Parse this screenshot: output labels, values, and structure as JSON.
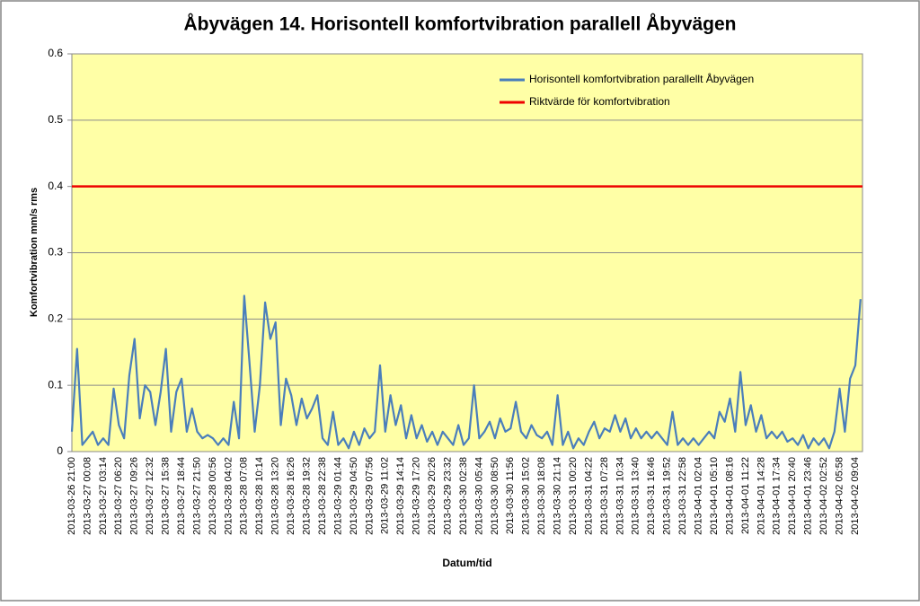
{
  "chart_data": {
    "type": "line",
    "title": "Åbyvägen 14.  Horisontell komfortvibration parallell Åbyvägen",
    "y_label": "Komfortvibration  mm/s rms",
    "x_label": "Datum/tid",
    "categories": [
      "2013-03-26 21:00",
      null,
      null,
      "2013-03-27 00:08",
      null,
      null,
      "2013-03-27 03:14",
      null,
      null,
      "2013-03-27 06:20",
      null,
      null,
      "2013-03-27 09:26",
      null,
      null,
      "2013-03-27 12:32",
      null,
      null,
      "2013-03-27 15:38",
      null,
      null,
      "2013-03-27 18:44",
      null,
      null,
      "2013-03-27 21:50",
      null,
      null,
      "2013-03-28 00:56",
      null,
      null,
      "2013-03-28 04:02",
      null,
      null,
      "2013-03-28 07:08",
      null,
      null,
      "2013-03-28 10:14",
      null,
      null,
      "2013-03-28 13:20",
      null,
      null,
      "2013-03-28 16:26",
      null,
      null,
      "2013-03-28 19:32",
      null,
      null,
      "2013-03-28 22:38",
      null,
      null,
      "2013-03-29 01:44",
      null,
      null,
      "2013-03-29 04:50",
      null,
      null,
      "2013-03-29 07:56",
      null,
      null,
      "2013-03-29 11:02",
      null,
      null,
      "2013-03-29 14:14",
      null,
      null,
      "2013-03-29 17:20",
      null,
      null,
      "2013-03-29 20:26",
      null,
      null,
      "2013-03-29 23:32",
      null,
      null,
      "2013-03-30 02:38",
      null,
      null,
      "2013-03-30 05:44",
      null,
      null,
      "2013-03-30 08:50",
      null,
      null,
      "2013-03-30 11:56",
      null,
      null,
      "2013-03-30 15:02",
      null,
      null,
      "2013-03-30 18:08",
      null,
      null,
      "2013-03-30 21:14",
      null,
      null,
      "2013-03-31 00:20",
      null,
      null,
      "2013-03-31 04:22",
      null,
      null,
      "2013-03-31 07:28",
      null,
      null,
      "2013-03-31 10:34",
      null,
      null,
      "2013-03-31 13:40",
      null,
      null,
      "2013-03-31 16:46",
      null,
      null,
      "2013-03-31 19:52",
      null,
      null,
      "2013-03-31 22:58",
      null,
      null,
      "2013-04-01 02:04",
      null,
      null,
      "2013-04-01 05:10",
      null,
      null,
      "2013-04-01 08:16",
      null,
      null,
      "2013-04-01 11:22",
      null,
      null,
      "2013-04-01 14:28",
      null,
      null,
      "2013-04-01 17:34",
      null,
      null,
      "2013-04-01 20:40",
      null,
      null,
      "2013-04-01 23:46",
      null,
      null,
      "2013-04-02 02:52",
      null,
      null,
      "2013-04-02 05:58",
      null,
      null,
      "2013-04-02 09:04",
      null
    ],
    "series": [
      {
        "name": "Horisontell komfortvibration parallellt Åbyvägen",
        "color": "#4a7ebb",
        "values": [
          0.03,
          0.155,
          0.01,
          0.02,
          0.03,
          0.01,
          0.02,
          0.01,
          0.095,
          0.04,
          0.02,
          0.115,
          0.17,
          0.05,
          0.1,
          0.09,
          0.04,
          0.09,
          0.155,
          0.03,
          0.09,
          0.11,
          0.03,
          0.065,
          0.03,
          0.02,
          0.025,
          0.02,
          0.01,
          0.02,
          0.01,
          0.075,
          0.02,
          0.235,
          0.135,
          0.03,
          0.1,
          0.225,
          0.17,
          0.195,
          0.04,
          0.11,
          0.085,
          0.04,
          0.08,
          0.05,
          0.065,
          0.085,
          0.02,
          0.01,
          0.06,
          0.01,
          0.02,
          0.005,
          0.03,
          0.01,
          0.035,
          0.02,
          0.03,
          0.13,
          0.03,
          0.085,
          0.04,
          0.07,
          0.02,
          0.055,
          0.02,
          0.04,
          0.015,
          0.03,
          0.01,
          0.03,
          0.02,
          0.01,
          0.04,
          0.01,
          0.02,
          0.1,
          0.02,
          0.03,
          0.045,
          0.02,
          0.05,
          0.03,
          0.035,
          0.075,
          0.03,
          0.02,
          0.04,
          0.025,
          0.02,
          0.03,
          0.01,
          0.085,
          0.01,
          0.03,
          0.005,
          0.02,
          0.01,
          0.03,
          0.045,
          0.02,
          0.035,
          0.03,
          0.055,
          0.03,
          0.05,
          0.02,
          0.035,
          0.02,
          0.03,
          0.02,
          0.03,
          0.02,
          0.01,
          0.06,
          0.01,
          0.02,
          0.01,
          0.02,
          0.01,
          0.02,
          0.03,
          0.02,
          0.06,
          0.045,
          0.08,
          0.03,
          0.12,
          0.04,
          0.07,
          0.03,
          0.055,
          0.02,
          0.03,
          0.02,
          0.03,
          0.015,
          0.02,
          0.01,
          0.025,
          0.005,
          0.02,
          0.01,
          0.02,
          0.005,
          0.03,
          0.095,
          0.03,
          0.11,
          0.13,
          0.23
        ]
      }
    ],
    "reference_lines": [
      {
        "name": "Riktvärde för komfortvibration",
        "color": "#ee0000",
        "value": 0.4
      }
    ],
    "ylim": [
      0,
      0.6
    ],
    "yticks": [
      0,
      0.1,
      0.2,
      0.3,
      0.4,
      0.5,
      0.6
    ],
    "grid": true,
    "legend": "top-right"
  }
}
